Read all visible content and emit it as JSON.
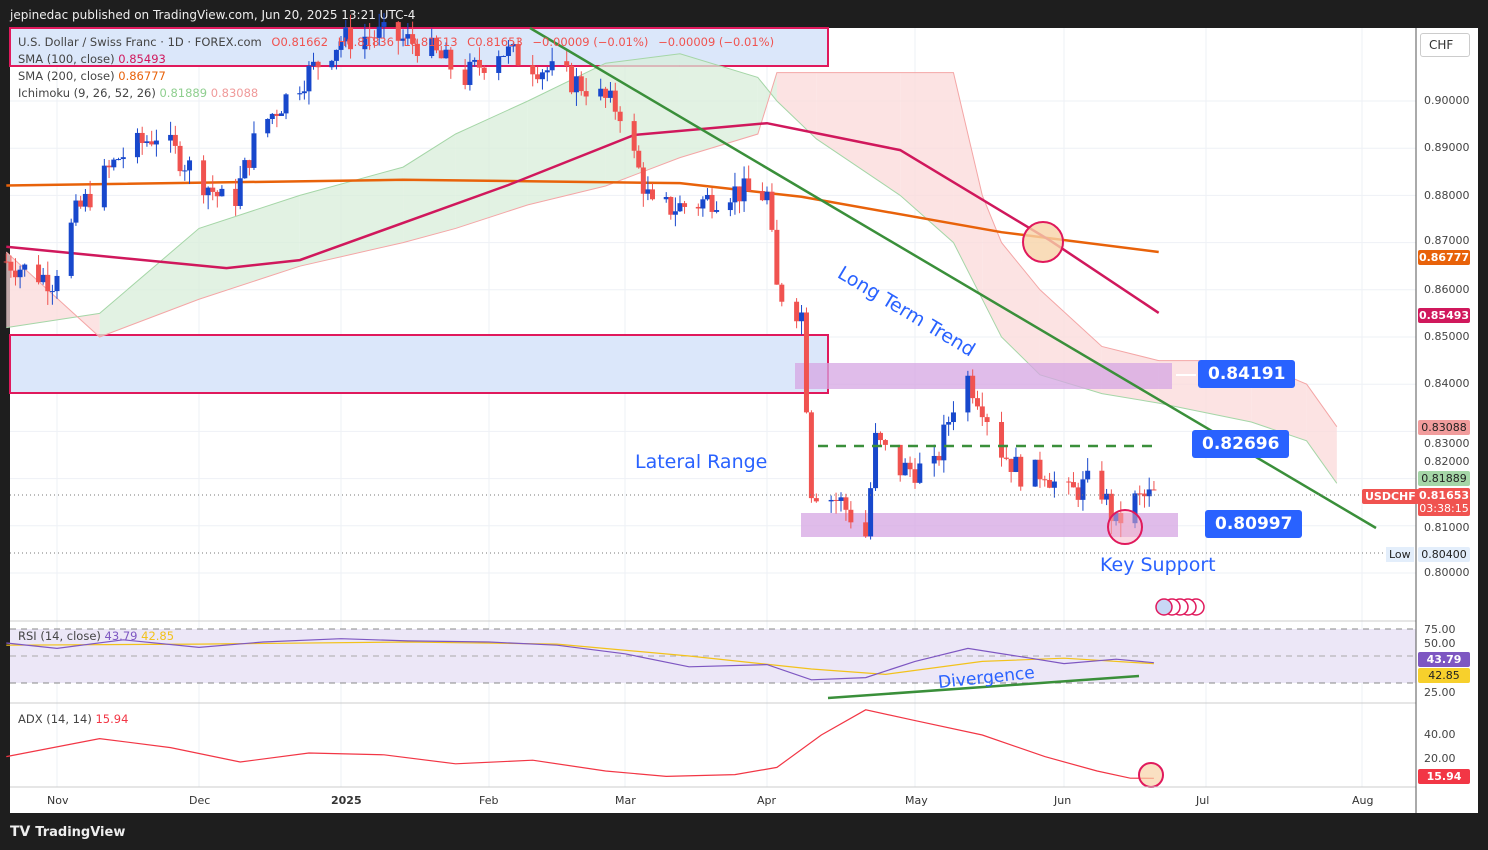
{
  "header": {
    "published": "jepinedac published on TradingView.com, Jun 20, 2025 13:21 UTC-4"
  },
  "legend": {
    "symbol": "U.S. Dollar / Swiss Franc · 1D · FOREX.com",
    "o": "O0.81662",
    "h": "H0.81836",
    "l": "L0.81513",
    "c": "C0.81653",
    "change": "−0.00009 (−0.01%)",
    "change2": "−0.00009 (−0.01%)",
    "sma100_label": "SMA (100, close)",
    "sma100_value": "0.85493",
    "sma200_label": "SMA (200, close)",
    "sma200_value": "0.86777",
    "ichimoku_label": "Ichimoku (9, 26, 52, 26)",
    "ichimoku_a": "0.81889",
    "ichimoku_b": "0.83088",
    "rsi_label": "RSI (14, close)",
    "rsi_value": "43.79",
    "rsi_ma": "42.85",
    "adx_label": "ADX (14, 14)",
    "adx_value": "15.94"
  },
  "axis": {
    "currency": "CHF",
    "price_ticks": [
      "0.90000",
      "0.89000",
      "0.88000",
      "0.87000",
      "0.86000",
      "0.85000",
      "0.84000",
      "0.83000",
      "0.82000",
      "0.81000",
      "0.80000"
    ],
    "rsi_ticks": [
      "75.00",
      "50.00",
      "25.00"
    ],
    "adx_ticks": [
      "40.00",
      "20.00"
    ],
    "dates": [
      "Nov",
      "Dec",
      "2025",
      "Feb",
      "Mar",
      "Apr",
      "May",
      "Jun",
      "Jul",
      "Aug"
    ],
    "badges": {
      "sma200": "0.86777",
      "sma100": "0.85493",
      "span_b": "0.83088",
      "span_a": "0.81889",
      "symbol": "USDCHF",
      "last": "0.81653",
      "countdown": "03:38:15",
      "low_label": "Low",
      "low": "0.80400",
      "rsi": "43.79",
      "rsi_ma": "42.85",
      "adx": "15.94"
    }
  },
  "annotations": {
    "level_high": "0.84191",
    "level_mid": "0.82696",
    "level_low": "0.80997",
    "trend": "Long Term Trend",
    "range": "Lateral Range",
    "support": "Key Support",
    "divergence": "Divergence"
  },
  "colors": {
    "up": "#1848cc",
    "down": "#f05350",
    "sma100": "#d0185c",
    "sma200": "#e8620a",
    "trend": "#3a8f3a",
    "accent": "#2962ff"
  },
  "footer": {
    "brand": "TradingView"
  },
  "chart_data": {
    "type": "candlestick",
    "title": "U.S. Dollar / Swiss Franc · 1D",
    "ylim": [
      0.795,
      0.913
    ],
    "price_path": [
      [
        "2024-10-21",
        0.866
      ],
      [
        "2024-10-31",
        0.862
      ],
      [
        "2024-11-05",
        0.876
      ],
      [
        "2024-11-14",
        0.888
      ],
      [
        "2024-11-22",
        0.893
      ],
      [
        "2024-12-01",
        0.884
      ],
      [
        "2024-12-08",
        0.877
      ],
      [
        "2024-12-14",
        0.894
      ],
      [
        "2024-12-23",
        0.904
      ],
      [
        "2025-01-01",
        0.913
      ],
      [
        "2025-01-09",
        0.914
      ],
      [
        "2025-01-18",
        0.912
      ],
      [
        "2025-01-27",
        0.905
      ],
      [
        "2025-02-03",
        0.911
      ],
      [
        "2025-02-12",
        0.907
      ],
      [
        "2025-02-21",
        0.903
      ],
      [
        "2025-02-28",
        0.898
      ],
      [
        "2025-03-03",
        0.888
      ],
      [
        "2025-03-07",
        0.877
      ],
      [
        "2025-03-16",
        0.878
      ],
      [
        "2025-03-24",
        0.881
      ],
      [
        "2025-04-01",
        0.88
      ],
      [
        "2025-04-03",
        0.86
      ],
      [
        "2025-04-08",
        0.855
      ],
      [
        "2025-04-10",
        0.818
      ],
      [
        "2025-04-16",
        0.815
      ],
      [
        "2025-04-21",
        0.808
      ],
      [
        "2025-04-23",
        0.828
      ],
      [
        "2025-04-28",
        0.822
      ],
      [
        "2025-05-05",
        0.822
      ],
      [
        "2025-05-11",
        0.843
      ],
      [
        "2025-05-15",
        0.836
      ],
      [
        "2025-05-19",
        0.826
      ],
      [
        "2025-05-24",
        0.82
      ],
      [
        "2025-05-28",
        0.822
      ],
      [
        "2025-06-01",
        0.816
      ],
      [
        "2025-06-08",
        0.82
      ],
      [
        "2025-06-12",
        0.81
      ],
      [
        "2025-06-15",
        0.815
      ],
      [
        "2025-06-20",
        0.8165
      ]
    ],
    "sma200": [
      [
        "2024-10-21",
        0.8821
      ],
      [
        "2025-01-14",
        0.8833
      ],
      [
        "2025-03-13",
        0.8826
      ],
      [
        "2025-04-08",
        0.8797
      ],
      [
        "2025-05-19",
        0.8722
      ],
      [
        "2025-06-21",
        0.868
      ]
    ],
    "sma100": [
      [
        "2024-10-21",
        0.8691
      ],
      [
        "2024-12-07",
        0.8646
      ],
      [
        "2024-12-23",
        0.8663
      ],
      [
        "2025-02-05",
        0.8822
      ],
      [
        "2025-03-03",
        0.8928
      ],
      [
        "2025-04-01",
        0.8953
      ],
      [
        "2025-04-28",
        0.8896
      ],
      [
        "2025-05-29",
        0.8705
      ],
      [
        "2025-06-21",
        0.8551
      ]
    ],
    "cloud": [
      [
        "2024-10-21",
        0.852,
        0.868
      ],
      [
        "2024-11-10",
        0.855,
        0.85
      ],
      [
        "2024-12-01",
        0.873,
        0.858
      ],
      [
        "2024-12-23",
        0.88,
        0.865
      ],
      [
        "2025-01-14",
        0.886,
        0.87
      ],
      [
        "2025-01-25",
        0.893,
        0.873
      ],
      [
        "2025-02-09",
        0.9,
        0.878
      ],
      [
        "2025-02-25",
        0.908,
        0.882
      ],
      [
        "2025-03-13",
        0.91,
        0.888
      ],
      [
        "2025-03-30",
        0.905,
        0.893
      ],
      [
        "2025-04-03",
        0.9,
        0.906
      ],
      [
        "2025-04-11",
        0.892,
        0.906
      ],
      [
        "2025-04-28",
        0.88,
        0.906
      ],
      [
        "2025-05-09",
        0.87,
        0.906
      ],
      [
        "2025-05-15",
        0.858,
        0.88
      ],
      [
        "2025-05-19",
        0.85,
        0.87
      ],
      [
        "2025-05-27",
        0.842,
        0.86
      ],
      [
        "2025-06-09",
        0.838,
        0.848
      ],
      [
        "2025-06-21",
        0.836,
        0.845
      ],
      [
        "2025-07-10",
        0.832,
        0.845
      ],
      [
        "2025-07-21",
        0.828,
        0.84
      ],
      [
        "2025-07-27",
        0.819,
        0.831
      ]
    ],
    "rsi": [
      [
        "2024-10-21",
        62
      ],
      [
        "2024-11-01",
        57
      ],
      [
        "2024-11-15",
        65
      ],
      [
        "2024-12-01",
        58
      ],
      [
        "2024-12-15",
        63
      ],
      [
        "2025-01-01",
        66
      ],
      [
        "2025-01-15",
        64
      ],
      [
        "2025-02-01",
        63
      ],
      [
        "2025-02-15",
        60
      ],
      [
        "2025-03-01",
        52
      ],
      [
        "2025-03-15",
        40
      ],
      [
        "2025-04-01",
        42
      ],
      [
        "2025-04-10",
        28
      ],
      [
        "2025-04-21",
        30
      ],
      [
        "2025-05-01",
        45
      ],
      [
        "2025-05-12",
        57
      ],
      [
        "2025-05-25",
        48
      ],
      [
        "2025-06-01",
        43
      ],
      [
        "2025-06-12",
        47
      ],
      [
        "2025-06-20",
        43.79
      ]
    ],
    "rsi_ma": [
      [
        "2024-10-21",
        60
      ],
      [
        "2024-12-01",
        61
      ],
      [
        "2025-01-15",
        63
      ],
      [
        "2025-02-15",
        61
      ],
      [
        "2025-03-15",
        50
      ],
      [
        "2025-04-10",
        38
      ],
      [
        "2025-04-25",
        33
      ],
      [
        "2025-05-15",
        45
      ],
      [
        "2025-06-01",
        48
      ],
      [
        "2025-06-20",
        42.85
      ]
    ],
    "adx": [
      [
        "2024-10-21",
        28
      ],
      [
        "2024-11-10",
        38
      ],
      [
        "2024-11-25",
        33
      ],
      [
        "2024-12-10",
        25
      ],
      [
        "2024-12-25",
        30
      ],
      [
        "2025-01-10",
        29
      ],
      [
        "2025-01-25",
        24
      ],
      [
        "2025-02-10",
        26
      ],
      [
        "2025-02-25",
        20
      ],
      [
        "2025-03-10",
        17
      ],
      [
        "2025-03-25",
        18
      ],
      [
        "2025-04-03",
        22
      ],
      [
        "2025-04-12",
        40
      ],
      [
        "2025-04-21",
        54
      ],
      [
        "2025-05-01",
        48
      ],
      [
        "2025-05-15",
        40
      ],
      [
        "2025-05-28",
        28
      ],
      [
        "2025-06-08",
        20
      ],
      [
        "2025-06-15",
        16
      ],
      [
        "2025-06-20",
        15.94
      ]
    ]
  }
}
